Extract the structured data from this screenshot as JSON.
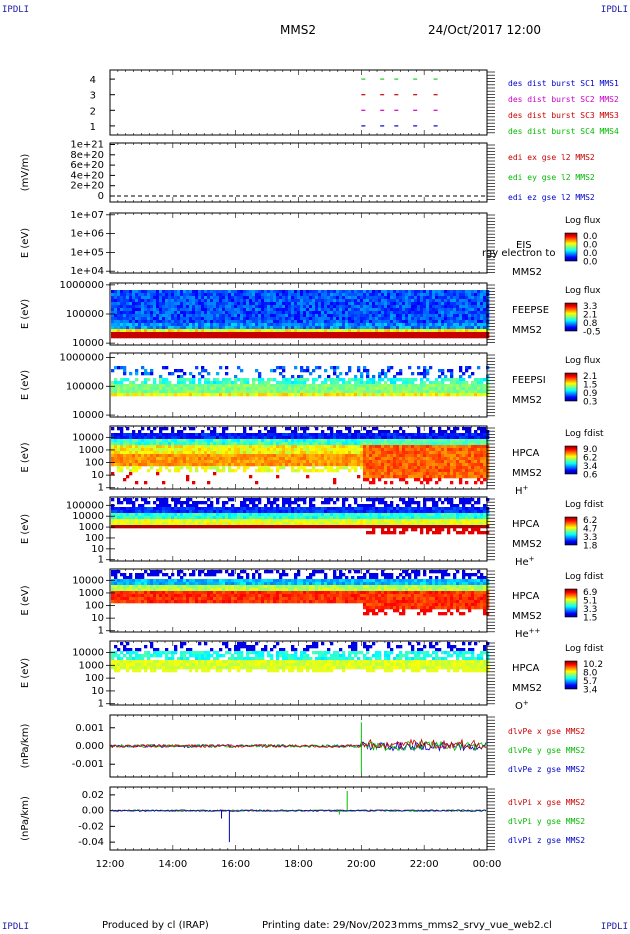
{
  "header": {
    "corner_tl": "IPDLI",
    "corner_tr": "IPDLI",
    "corner_bl": "IPDLI",
    "corner_br": "IPDLI",
    "spacecraft": "MMS2",
    "datetime": "24/Oct/2017 12:00"
  },
  "footer": {
    "produced": "Produced by cl (IRAP)",
    "printing": "Printing date: 29/Nov/2023",
    "filename": "mms_mms2_srvy_vue_web2.cl"
  },
  "colors": {
    "mms1": "#22cc22",
    "mms2": "#cc0000",
    "mms3": "#cc00cc",
    "mms4": "#0000cc",
    "sc1": "#0000cc",
    "sc2": "#cc00cc",
    "sc3": "#cc0000",
    "sc4": "#00bb00",
    "x": "#cc0000",
    "y": "#00bb00",
    "z": "#0000cc"
  },
  "chart_data": [
    {
      "type": "scatter",
      "ylabel": "",
      "yticks": [
        "1",
        "2",
        "3",
        "4"
      ],
      "x_range": [
        "12:00",
        "00:00"
      ],
      "legend": [
        "des dist burst SC1 MMS1",
        "des dist burst SC2 MMS2",
        "des dist burst SC3 MMS3",
        "des dist burst SC4 MMS4"
      ],
      "legend_colors": [
        "#0000cc",
        "#cc00cc",
        "#cc0000",
        "#00bb00"
      ],
      "series": [
        {
          "row": 4,
          "color_key": "mms1",
          "x": [
            20.0,
            20.6,
            21.05,
            21.65,
            22.3
          ]
        },
        {
          "row": 3,
          "color_key": "mms2",
          "x": [
            20.0,
            20.6,
            21.05,
            21.65,
            22.3
          ]
        },
        {
          "row": 2,
          "color_key": "mms3",
          "x": [
            20.0,
            20.6,
            21.05,
            21.65,
            22.3
          ]
        },
        {
          "row": 1,
          "color_key": "mms4",
          "x": [
            20.0,
            20.6,
            21.05,
            21.65,
            22.3
          ]
        }
      ]
    },
    {
      "type": "line",
      "ylabel": "(mV/m)",
      "yticks": [
        "0",
        "2e+20",
        "4e+20",
        "6e+20",
        "8e+20",
        "1e+21"
      ],
      "legend": [
        "edi ex gse l2 MMS2",
        "edi ey gse l2 MMS2",
        "edi ez gse l2 MMS2"
      ],
      "legend_colors": [
        "#cc0000",
        "#00bb00",
        "#0000cc"
      ],
      "series": [
        {
          "name": "edi",
          "values": [
            0,
            0
          ]
        }
      ]
    },
    {
      "type": "heatmap",
      "ylabel": "E (eV)",
      "yticks": [
        "1e+04",
        "1e+05",
        "1e+06",
        "1e+07"
      ],
      "instrument": "EIS",
      "overlap_label": "rgy electron to",
      "spacecraft": "MMS2",
      "cbar_title": "Log flux",
      "cbar_ticks": [
        "0.0",
        "0.0",
        "0.0",
        "0.0"
      ],
      "empty": true
    },
    {
      "type": "heatmap",
      "ylabel": "E (eV)",
      "yticks": [
        "10000",
        "100000",
        "1000000"
      ],
      "instrument": "FEEPSE",
      "spacecraft": "MMS2",
      "cbar_title": "Log flux",
      "cbar_ticks": [
        "3.3",
        "2.1",
        "0.8",
        "-0.5"
      ]
    },
    {
      "type": "heatmap",
      "ylabel": "E (eV)",
      "yticks": [
        "10000",
        "100000",
        "1000000"
      ],
      "instrument": "FEEPSI",
      "spacecraft": "MMS2",
      "cbar_title": "Log flux",
      "cbar_ticks": [
        "2.1",
        "1.5",
        "0.9",
        "0.3"
      ]
    },
    {
      "type": "heatmap",
      "ylabel": "E (eV)",
      "yticks": [
        "1",
        "10",
        "100",
        "1000",
        "10000"
      ],
      "instrument": "HPCA",
      "spacecraft": "MMS2",
      "species": "H",
      "species_sup": "+",
      "cbar_title": "Log fdist",
      "cbar_ticks": [
        "9.0",
        "6.2",
        "3.4",
        "0.6"
      ]
    },
    {
      "type": "heatmap",
      "ylabel": "E (eV)",
      "yticks": [
        "1",
        "10",
        "100",
        "1000",
        "10000",
        "100000"
      ],
      "instrument": "HPCA",
      "spacecraft": "MMS2",
      "species": "He",
      "species_sup": "+",
      "cbar_title": "Log fdist",
      "cbar_ticks": [
        "6.2",
        "4.7",
        "3.3",
        "1.8"
      ]
    },
    {
      "type": "heatmap",
      "ylabel": "E (eV)",
      "yticks": [
        "1",
        "10",
        "100",
        "1000",
        "10000"
      ],
      "instrument": "HPCA",
      "spacecraft": "MMS2",
      "species": "He",
      "species_sup": "++",
      "cbar_title": "Log fdist",
      "cbar_ticks": [
        "6.9",
        "5.1",
        "3.3",
        "1.5"
      ]
    },
    {
      "type": "heatmap",
      "ylabel": "E (eV)",
      "yticks": [
        "1",
        "10",
        "100",
        "1000",
        "10000"
      ],
      "instrument": "HPCA",
      "spacecraft": "MMS2",
      "species": "O",
      "species_sup": "+",
      "cbar_title": "Log fdist",
      "cbar_ticks": [
        "10.2",
        "8.0",
        "5.7",
        "3.4"
      ]
    },
    {
      "type": "line",
      "ylabel": "(nPa/km)",
      "yticks": [
        "-0.001",
        "0.000",
        "0.001"
      ],
      "ylim": [
        -0.0017,
        0.0017
      ],
      "legend": [
        "dlvPe x gse MMS2",
        "dlvPe y gse MMS2",
        "dlvPe z gse MMS2"
      ],
      "legend_colors": [
        "#cc0000",
        "#00bb00",
        "#0000cc"
      ]
    },
    {
      "type": "line",
      "ylabel": "(nPa/km)",
      "yticks": [
        "-0.04",
        "-0.02",
        "0.00",
        "0.02"
      ],
      "ylim": [
        -0.05,
        0.03
      ],
      "legend": [
        "dlvPi x gse MMS2",
        "dlvPi y gse MMS2",
        "dlvPi z gse MMS2"
      ],
      "legend_colors": [
        "#cc0000",
        "#00bb00",
        "#0000cc"
      ],
      "xticks": [
        "12:00",
        "14:00",
        "16:00",
        "18:00",
        "20:00",
        "22:00",
        "00:00"
      ]
    }
  ]
}
